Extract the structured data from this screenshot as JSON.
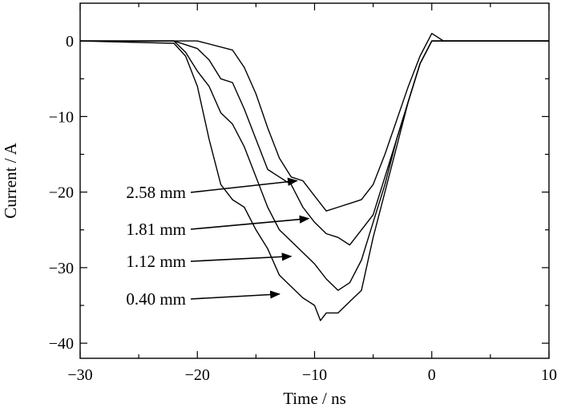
{
  "chart_data": {
    "type": "line",
    "title": "",
    "xlabel": "Time / ns",
    "ylabel": "Current / A",
    "xlim": [
      -30,
      10
    ],
    "ylim": [
      -42,
      5
    ],
    "grid": false,
    "x_ticks": [
      -30,
      -20,
      -10,
      0,
      10
    ],
    "x_tick_labels": [
      "−30",
      "−20",
      "−10",
      "0",
      "10"
    ],
    "y_ticks": [
      0,
      -10,
      -20,
      -30,
      -40
    ],
    "y_tick_labels": [
      "0",
      "−10",
      "−20",
      "−30",
      "−40"
    ],
    "series": [
      {
        "name": "2.58 mm",
        "x": [
          -30,
          -20,
          -17,
          -16,
          -15,
          -14,
          -13,
          -12,
          -11,
          -10,
          -9,
          -8,
          -7,
          -6,
          -5,
          -4,
          -3,
          -2,
          -1,
          0,
          1,
          5,
          10
        ],
        "y": [
          0,
          0,
          -1.2,
          -3.5,
          -7,
          -11.5,
          -15.5,
          -18,
          -18.5,
          -20.5,
          -22.5,
          -22,
          -21.5,
          -21,
          -19,
          -15,
          -10.5,
          -6,
          -2,
          1,
          0,
          0,
          0
        ]
      },
      {
        "name": "1.81 mm",
        "x": [
          -30,
          -22,
          -20,
          -19,
          -18,
          -17,
          -16,
          -15,
          -14,
          -13,
          -12,
          -11,
          -10,
          -9,
          -8,
          -7,
          -6,
          -5,
          -4,
          -3,
          -2,
          -1,
          0,
          1,
          5,
          10
        ],
        "y": [
          0,
          0,
          -1,
          -2.5,
          -5,
          -5.5,
          -9,
          -13,
          -17,
          -18,
          -19,
          -22,
          -24,
          -25.5,
          -26,
          -27,
          -25,
          -23,
          -18,
          -13,
          -8,
          -3,
          0,
          0,
          0,
          0
        ]
      },
      {
        "name": "1.12 mm",
        "x": [
          -30,
          -22,
          -21,
          -20,
          -19,
          -18,
          -17,
          -16,
          -15,
          -14,
          -13,
          -12,
          -11,
          -10,
          -9,
          -8,
          -7,
          -6,
          -5,
          -4,
          -3,
          -2,
          -1,
          0,
          1,
          5,
          10
        ],
        "y": [
          0,
          0,
          -1.5,
          -4,
          -6,
          -9.5,
          -11,
          -14,
          -18,
          -22,
          -25,
          -26.5,
          -28,
          -29.5,
          -31.5,
          -33,
          -32,
          -29,
          -24,
          -19,
          -13,
          -8,
          -3,
          0,
          0,
          0,
          0
        ]
      },
      {
        "name": "0.40 mm",
        "x": [
          -30,
          -22,
          -21,
          -20,
          -19,
          -18,
          -17,
          -16,
          -15,
          -14,
          -13,
          -12,
          -11,
          -10,
          -9.5,
          -9,
          -8,
          -7,
          -6,
          -5,
          -4,
          -3,
          -2,
          -1,
          0,
          1,
          5,
          10
        ],
        "y": [
          0,
          -0.3,
          -2,
          -6,
          -13,
          -19,
          -21,
          -22,
          -25,
          -27.5,
          -31,
          -32.5,
          -34,
          -35,
          -37,
          -36,
          -36,
          -34.5,
          -33,
          -26,
          -20,
          -14,
          -8,
          -3,
          0,
          0,
          0,
          0
        ]
      }
    ],
    "annotations": [
      {
        "label": "2.58 mm",
        "arrow_to": [
          -11.5,
          -18.5
        ]
      },
      {
        "label": "1.81 mm",
        "arrow_to": [
          -10.5,
          -23.5
        ]
      },
      {
        "label": "1.12 mm",
        "arrow_to": [
          -12,
          -28.5
        ]
      },
      {
        "label": "0.40 mm",
        "arrow_to": [
          -13,
          -33.5
        ]
      }
    ]
  }
}
